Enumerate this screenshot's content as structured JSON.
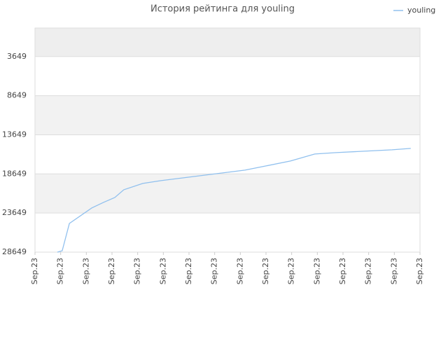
{
  "chart_data": {
    "type": "line",
    "title": "История рейтинга для youling",
    "x": [
      0.87,
      1.06,
      1.34,
      2.21,
      2.67,
      3.11,
      3.46,
      4.2,
      4.91,
      6.0,
      7.09,
      8.18,
      9.0,
      9.95,
      10.9,
      11.73,
      12.82,
      13.91,
      14.64
    ],
    "series": [
      {
        "name": "youling",
        "color": "#90c0ee",
        "values": [
          28649,
          28470,
          24975,
          23004,
          22287,
          21660,
          20674,
          19867,
          19508,
          19060,
          18612,
          18164,
          17627,
          17000,
          16104,
          15924,
          15745,
          15566,
          15387
        ]
      }
    ],
    "xlim": [
      0,
      15
    ],
    "xticks": [
      {
        "value": 0,
        "label": "Sep.23"
      },
      {
        "value": 1,
        "label": "Sep.23"
      },
      {
        "value": 2,
        "label": "Sep.23"
      },
      {
        "value": 3,
        "label": "Sep.23"
      },
      {
        "value": 4,
        "label": "Sep.23"
      },
      {
        "value": 5,
        "label": "Sep.23"
      },
      {
        "value": 6,
        "label": "Sep.23"
      },
      {
        "value": 7,
        "label": "Sep.23"
      },
      {
        "value": 8,
        "label": "Sep.23"
      },
      {
        "value": 9,
        "label": "Sep.23"
      },
      {
        "value": 10,
        "label": "Sep.23"
      },
      {
        "value": 11,
        "label": "Sep.23"
      },
      {
        "value": 12,
        "label": "Sep.23"
      },
      {
        "value": 13,
        "label": "Sep.23"
      },
      {
        "value": 14,
        "label": "Sep.23"
      },
      {
        "value": 15,
        "label": "Sep.23"
      }
    ],
    "ylim": [
      28649,
      0
    ],
    "yticks": [
      3649,
      8649,
      13649,
      18649,
      23649,
      28649
    ],
    "grid": true,
    "legend": "top-right"
  }
}
